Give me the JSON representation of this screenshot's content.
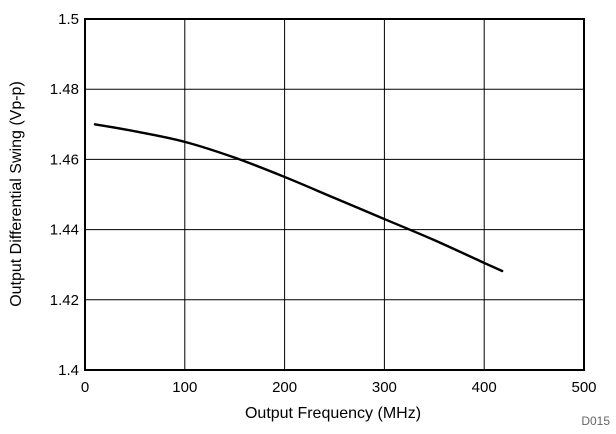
{
  "figure_id": "D015",
  "chart_data": {
    "type": "line",
    "xlabel": "Output Frequency (MHz)",
    "ylabel": "Output Differential Swing (Vp-p)",
    "xlim": [
      0,
      500
    ],
    "ylim": [
      1.4,
      1.5
    ],
    "xticks": [
      0,
      100,
      200,
      300,
      400,
      500
    ],
    "yticks": [
      1.4,
      1.42,
      1.44,
      1.46,
      1.48,
      1.5
    ],
    "xtick_labels": [
      "0",
      "100",
      "200",
      "300",
      "400",
      "500"
    ],
    "ytick_labels": [
      "1.4",
      "1.42",
      "1.44",
      "1.46",
      "1.48",
      "1.5"
    ],
    "grid": true,
    "series": [
      {
        "x": [
          10,
          50,
          100,
          150,
          200,
          250,
          300,
          350,
          400,
          418
        ],
        "y": [
          1.47,
          1.468,
          1.465,
          1.4605,
          1.455,
          1.449,
          1.443,
          1.437,
          1.4305,
          1.4282
        ]
      }
    ]
  }
}
